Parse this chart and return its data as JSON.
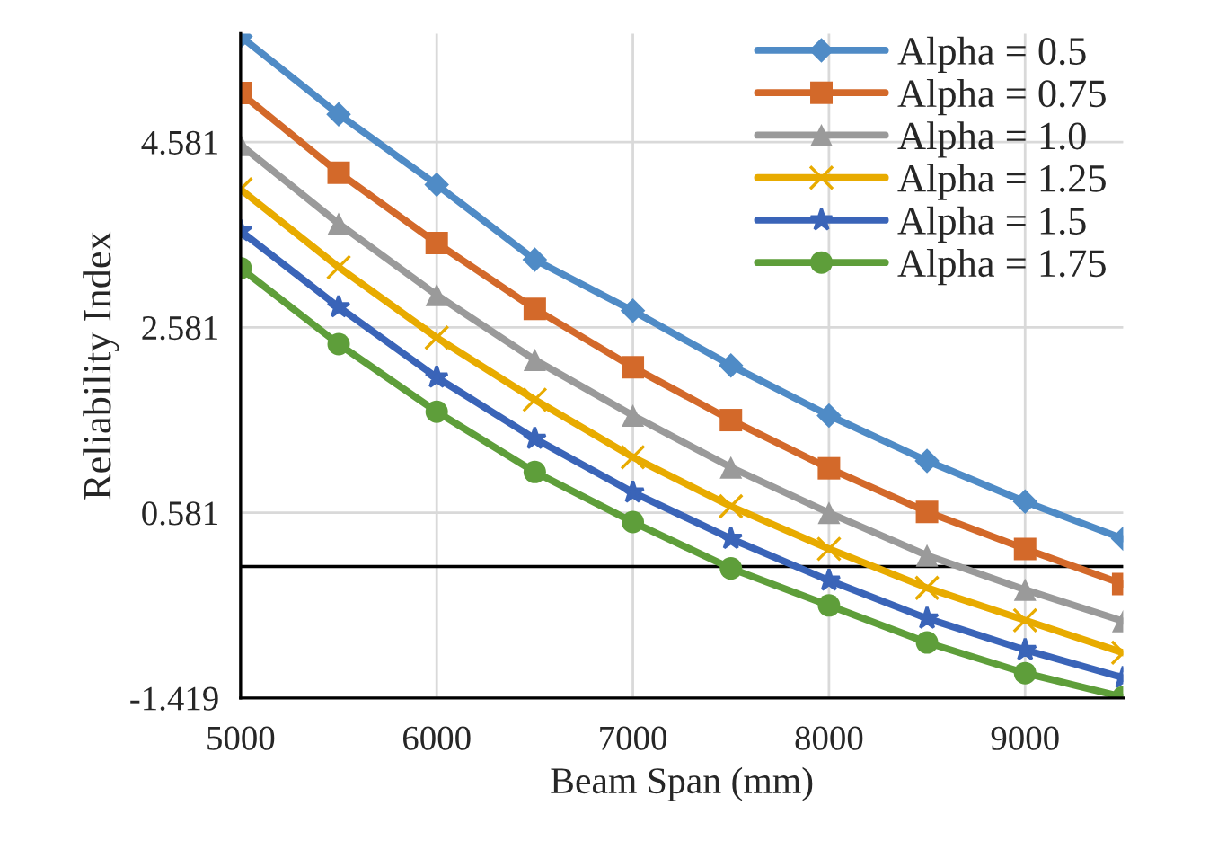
{
  "chart_data": {
    "type": "line",
    "xlabel": "Beam Span (mm)",
    "ylabel": "Reliability Index",
    "x": [
      5000,
      5500,
      6000,
      6500,
      7000,
      7500,
      8000,
      8500,
      9000,
      9500
    ],
    "series": [
      {
        "name": "Alpha = 0.5",
        "color": "#4f8bc6",
        "marker": "diamond",
        "values": [
          5.72,
          4.88,
          4.12,
          3.31,
          2.76,
          2.17,
          1.63,
          1.14,
          0.7,
          0.3
        ]
      },
      {
        "name": "Alpha = 0.75",
        "color": "#d3692a",
        "marker": "square",
        "values": [
          5.11,
          4.25,
          3.49,
          2.78,
          2.15,
          1.58,
          1.06,
          0.59,
          0.19,
          -0.19
        ]
      },
      {
        "name": "Alpha = 1.0",
        "color": "#9a9a9a",
        "marker": "triangle",
        "values": [
          4.55,
          3.7,
          2.93,
          2.23,
          1.63,
          1.07,
          0.58,
          0.12,
          -0.25,
          -0.59
        ]
      },
      {
        "name": "Alpha = 1.25",
        "color": "#e8ab00",
        "marker": "cross",
        "values": [
          4.07,
          3.23,
          2.47,
          1.8,
          1.18,
          0.65,
          0.19,
          -0.23,
          -0.58,
          -0.93
        ]
      },
      {
        "name": "Alpha = 1.5",
        "color": "#3a64b8",
        "marker": "star",
        "values": [
          3.62,
          2.8,
          2.04,
          1.38,
          0.8,
          0.3,
          -0.15,
          -0.56,
          -0.9,
          -1.2
        ]
      },
      {
        "name": "Alpha = 1.75",
        "color": "#5e9e3a",
        "marker": "circle",
        "values": [
          3.22,
          2.4,
          1.67,
          1.02,
          0.48,
          -0.02,
          -0.42,
          -0.82,
          -1.15,
          -1.41
        ]
      }
    ],
    "xlim": [
      5000,
      9500
    ],
    "xticks": [
      5000,
      6000,
      7000,
      8000,
      9000
    ],
    "ylim": [
      -1.419,
      5.75
    ],
    "yticks": [
      -1.419,
      0.581,
      2.581,
      4.581
    ],
    "grid": true,
    "legend": "top right",
    "line_style": "solid"
  }
}
